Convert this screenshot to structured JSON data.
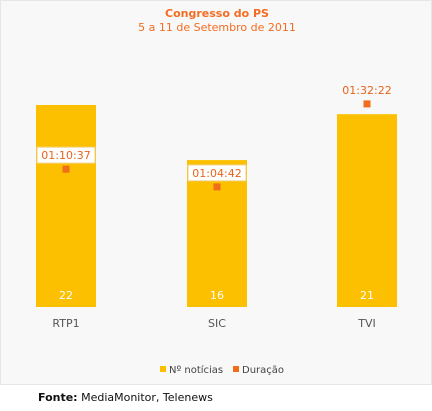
{
  "colors": {
    "bar": "#fcc000",
    "marker": "#ef6d1b",
    "title": "#f36c21"
  },
  "chart_data": {
    "type": "bar",
    "title": "Congresso do PS",
    "subtitle": "5 a 11 de Setembro de 2011",
    "categories": [
      "RTP1",
      "SIC",
      "TVI"
    ],
    "series": [
      {
        "name": "Nº notícias",
        "values": [
          22,
          16,
          21
        ]
      },
      {
        "name": "Duração",
        "values": [
          "01:10:37",
          "01:04:42",
          "01:32:22"
        ]
      }
    ],
    "legend": "bottom-center",
    "grid": false
  },
  "source": {
    "label": "Fonte:",
    "text": " MediaMonitor, Telenews"
  }
}
